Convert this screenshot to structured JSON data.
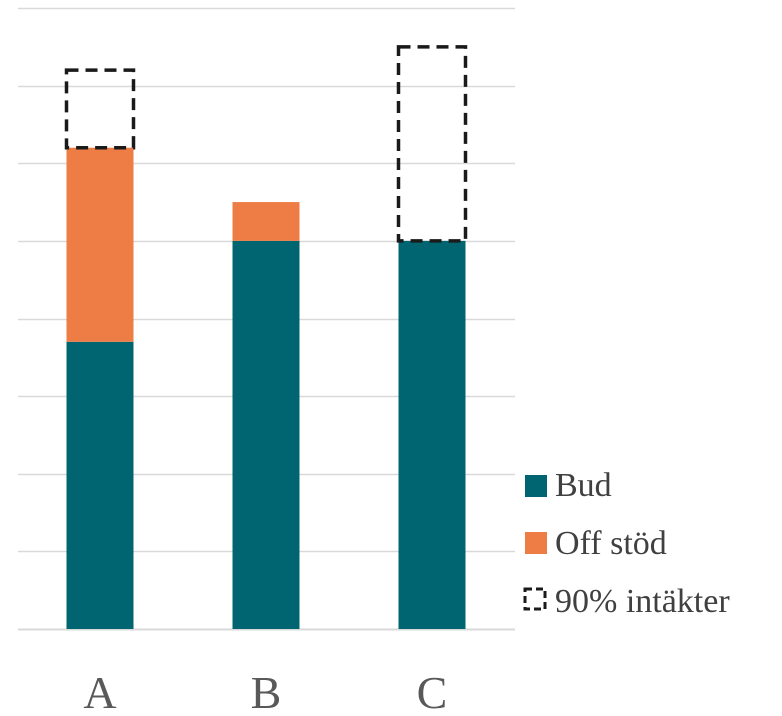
{
  "chart_data": {
    "type": "bar",
    "stacked": true,
    "categories": [
      "A",
      "B",
      "C"
    ],
    "series": [
      {
        "name": "Bud",
        "values": [
          3.7,
          5.0,
          5.0
        ],
        "color": "#006570"
      },
      {
        "name": "Off stöd",
        "values": [
          2.5,
          0.5,
          0.0
        ],
        "color": "#EE7D45"
      },
      {
        "name": "90% intäkter",
        "values": [
          1.0,
          0.0,
          2.5
        ],
        "style": "dashed-outline",
        "color": "#1a1a1a"
      }
    ],
    "ylim": [
      0,
      8
    ],
    "grid": true,
    "legend_position": "right"
  }
}
